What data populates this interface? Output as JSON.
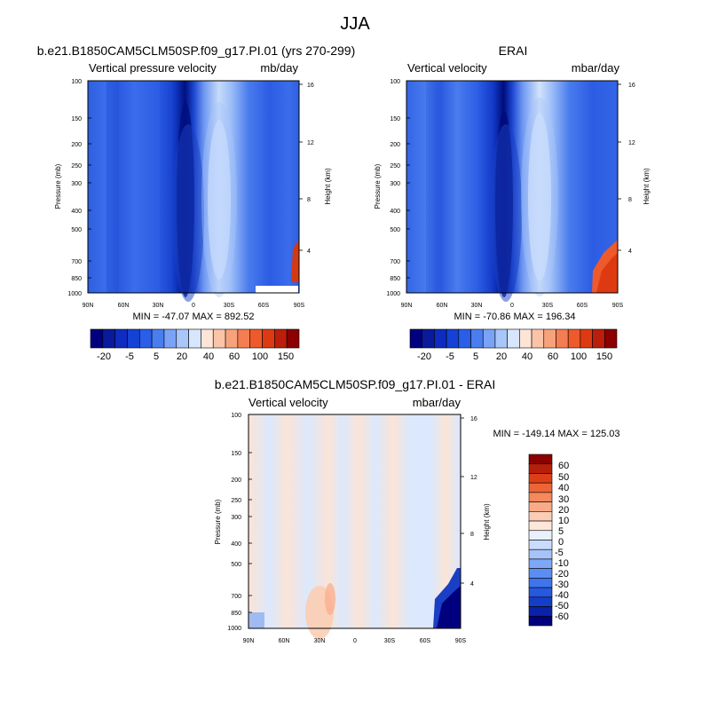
{
  "title": "JJA",
  "colors": {
    "main_scale": [
      "#00007f",
      "#0a1a9c",
      "#0e2cc0",
      "#1542d4",
      "#2a5ee8",
      "#4a7df0",
      "#7aa3f6",
      "#a8c6fa",
      "#d6e6fd",
      "#fde4d6",
      "#fbc4a8",
      "#f8a27c",
      "#f47d51",
      "#ee5a2c",
      "#de3a12",
      "#bb1e0b",
      "#8b0000"
    ],
    "diff_scale": [
      "#00007f",
      "#0a22a6",
      "#153ec8",
      "#2658e0",
      "#3f74ec",
      "#5b8ef2",
      "#7ea8f6",
      "#a6c4fa",
      "#cadcfc",
      "#e9f1fe",
      "#fde7da",
      "#fbcdb4",
      "#f9ab88",
      "#f5885d",
      "#ed6436",
      "#dc3f17",
      "#b61f0a",
      "#8b0000"
    ]
  },
  "chart_data": [
    {
      "type": "heatmap",
      "title": "b.e21.B1850CAM5CLM50SP.f09_g17.PI.01 (yrs 270-299)",
      "left_label": "Vertical pressure velocity",
      "right_label": "mb/day",
      "ylabel": "Pressure (mb)",
      "y2label": "Height (km)",
      "x_ticks": [
        "90N",
        "60N",
        "30N",
        "0",
        "30S",
        "60S",
        "90S"
      ],
      "y_ticks": [
        "100",
        "150",
        "200",
        "250",
        "300",
        "400",
        "500",
        "700",
        "850",
        "1000"
      ],
      "y2_ticks": [
        "16",
        "12",
        "8",
        "4"
      ],
      "stats": "MIN = -47.07  MAX = 892.52",
      "colorbar_labels": [
        "-20",
        "-5",
        "5",
        "20",
        "40",
        "60",
        "100",
        "150"
      ],
      "xlim": [
        90,
        -90
      ],
      "ylim": [
        100,
        1000
      ],
      "y_scale": "log"
    },
    {
      "type": "heatmap",
      "title": "ERAI",
      "left_label": "Vertical velocity",
      "right_label": "mbar/day",
      "ylabel": "Pressure (mb)",
      "y2label": "Height (km)",
      "x_ticks": [
        "90N",
        "60N",
        "30N",
        "0",
        "30S",
        "60S",
        "90S"
      ],
      "y_ticks": [
        "100",
        "150",
        "200",
        "250",
        "300",
        "400",
        "500",
        "700",
        "850",
        "1000"
      ],
      "y2_ticks": [
        "16",
        "12",
        "8",
        "4"
      ],
      "stats": "MIN = -70.86  MAX = 196.34",
      "colorbar_labels": [
        "-20",
        "-5",
        "5",
        "20",
        "40",
        "60",
        "100",
        "150"
      ],
      "xlim": [
        90,
        -90
      ],
      "ylim": [
        100,
        1000
      ],
      "y_scale": "log"
    },
    {
      "type": "heatmap",
      "title": "b.e21.B1850CAM5CLM50SP.f09_g17.PI.01 - ERAI",
      "left_label": "Vertical velocity",
      "right_label": "mbar/day",
      "ylabel": "Pressure (mb)",
      "y2label": "Height (km)",
      "x_ticks": [
        "90N",
        "60N",
        "30N",
        "0",
        "30S",
        "60S",
        "90S"
      ],
      "y_ticks": [
        "100",
        "150",
        "200",
        "250",
        "300",
        "400",
        "500",
        "700",
        "850",
        "1000"
      ],
      "y2_ticks": [
        "16",
        "12",
        "8",
        "4"
      ],
      "stats": "MIN = -149.14  MAX = 125.03",
      "colorbar_labels": [
        "60",
        "50",
        "40",
        "30",
        "20",
        "10",
        "5",
        "0",
        "-5",
        "-10",
        "-20",
        "-30",
        "-40",
        "-50",
        "-60"
      ],
      "xlim": [
        90,
        -90
      ],
      "ylim": [
        100,
        1000
      ],
      "y_scale": "log"
    }
  ]
}
